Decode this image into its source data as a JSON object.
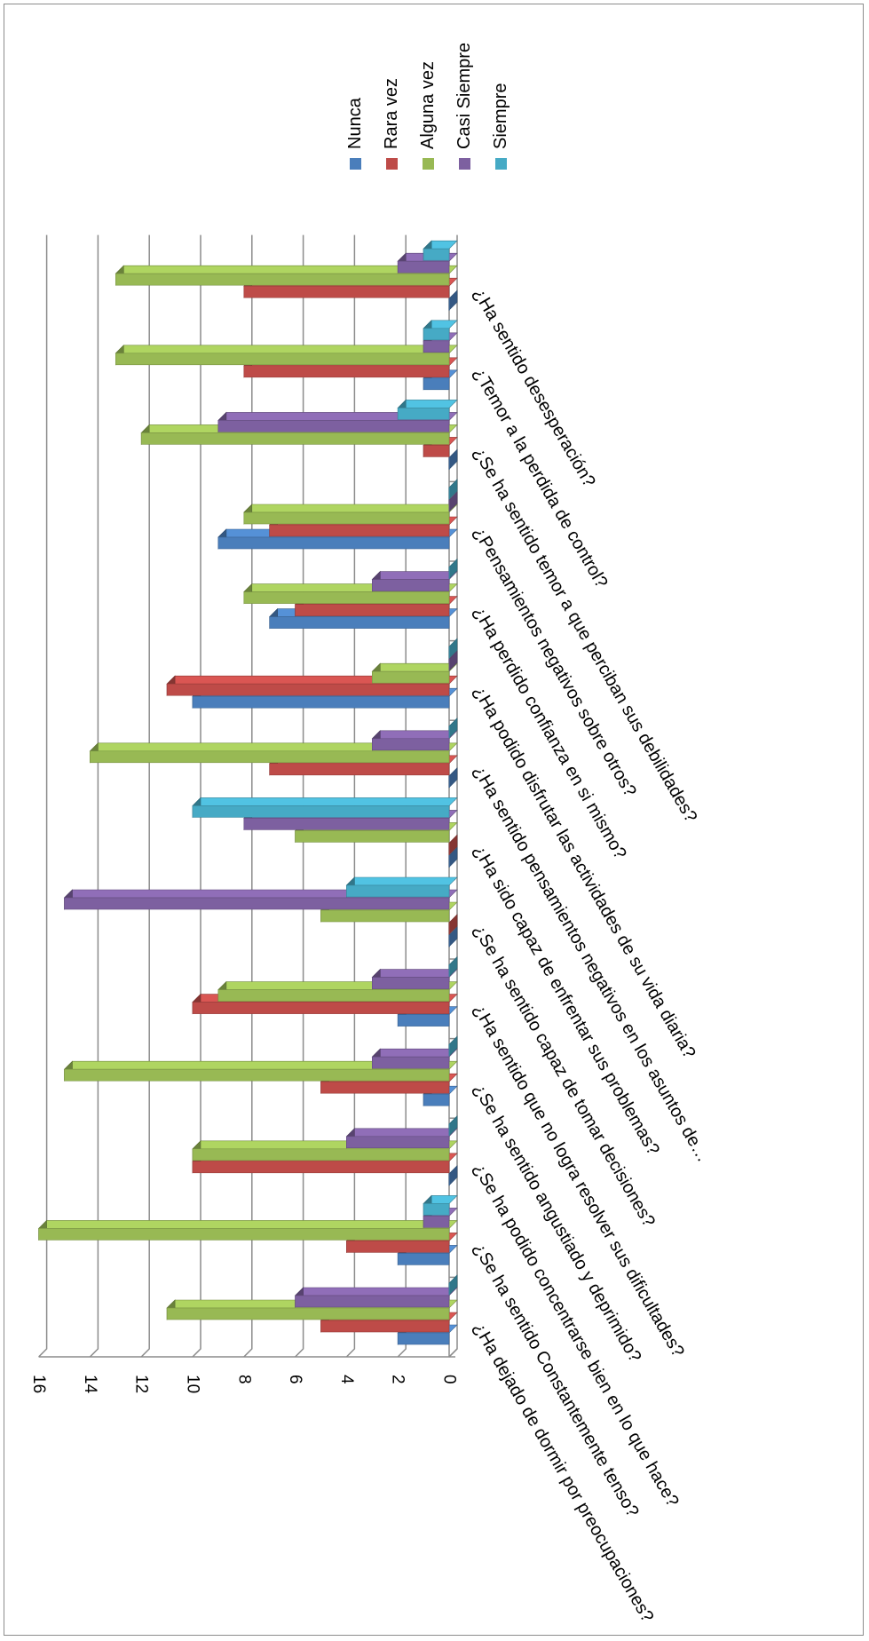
{
  "chart_data": {
    "type": "bar",
    "orientation": "rotated-90",
    "style": "3d-clustered-bar",
    "ylim": [
      0,
      16
    ],
    "yticks": [
      "0",
      "2",
      "4",
      "6",
      "8",
      "10",
      "12",
      "14",
      "16"
    ],
    "grid": true,
    "legend_position": "top-right",
    "categories": [
      "¿Ha dejado de dormir por preocupaciones?",
      "¿Se ha sentido Constantemente tenso?",
      "¿Se ha podido concentrarse bien en lo que hace?",
      "¿Se ha sentido angustiado y deprimido?",
      "¿Ha sentido que no logra resolver sus dificultades?",
      "¿Se ha sentido capaz de tomar decisiones?",
      "¿Ha sido capaz de enfrentar sus problemas?",
      "¿Ha sentido pensamientos negativos en los asuntos de…",
      "¿Ha podido disfrutar las actividades de su vida diaria?",
      "¿Ha perdido confianza en si mismo?",
      "¿Pensamientos negativos sobre otros?",
      "¿Se ha sentido temor a que perciban sus debilidades?",
      "¿Temor a la perdida de control?",
      "¿Ha sentido desesperación?"
    ],
    "series": [
      {
        "name": "Nunca",
        "color": "#4a7ebb",
        "values": [
          2,
          2,
          0,
          1,
          2,
          0,
          0,
          0,
          10,
          7,
          9,
          0,
          1,
          0
        ]
      },
      {
        "name": "Rara vez",
        "color": "#be4b48",
        "values": [
          5,
          4,
          10,
          5,
          10,
          0,
          0,
          7,
          11,
          6,
          7,
          1,
          8,
          8
        ]
      },
      {
        "name": "Alguna vez",
        "color": "#98b954",
        "values": [
          11,
          16,
          10,
          15,
          9,
          5,
          6,
          14,
          3,
          8,
          8,
          12,
          13,
          13
        ]
      },
      {
        "name": "Casi Siempre",
        "color": "#7d60a0",
        "values": [
          6,
          1,
          4,
          3,
          3,
          15,
          8,
          3,
          0,
          3,
          0,
          9,
          1,
          2
        ]
      },
      {
        "name": "Siempre",
        "color": "#46aac5",
        "values": [
          0,
          1,
          0,
          0,
          0,
          4,
          10,
          0,
          0,
          0,
          0,
          2,
          1,
          1
        ]
      }
    ]
  }
}
